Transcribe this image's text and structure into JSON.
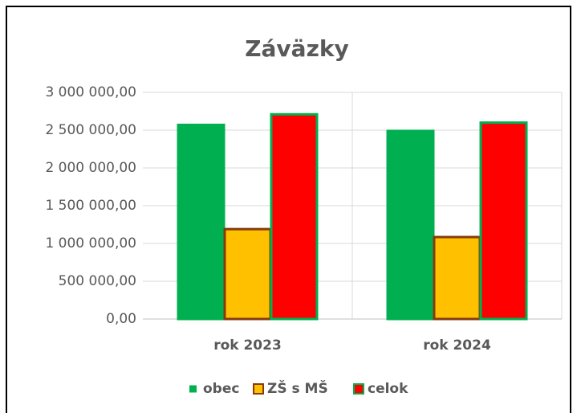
{
  "chart_data": {
    "type": "bar",
    "title": "Záväzky",
    "categories": [
      "rok 2023",
      "rok 2024"
    ],
    "series": [
      {
        "name": "obec",
        "color": "#00b050",
        "border": "#00b050",
        "values": [
          2570000,
          2490000
        ]
      },
      {
        "name": "ZŠ s MŠ",
        "color": "#ffc000",
        "border": "#843c0c",
        "values": [
          1190000,
          1085000
        ]
      },
      {
        "name": "celok",
        "color": "#ff0000",
        "border": "#00b050",
        "values": [
          2710000,
          2600000
        ]
      }
    ],
    "ylim": [
      0,
      3000000
    ],
    "yticks": [
      {
        "value": 0,
        "label": "0,00"
      },
      {
        "value": 500000,
        "label": "500 000,00"
      },
      {
        "value": 1000000,
        "label": "1 000 000,00"
      },
      {
        "value": 1500000,
        "label": "1 500 000,00"
      },
      {
        "value": 2000000,
        "label": "2 000 000,00"
      },
      {
        "value": 2500000,
        "label": "2 500 000,00"
      },
      {
        "value": 3000000,
        "label": "3 000 000,00"
      }
    ],
    "grid": true
  }
}
